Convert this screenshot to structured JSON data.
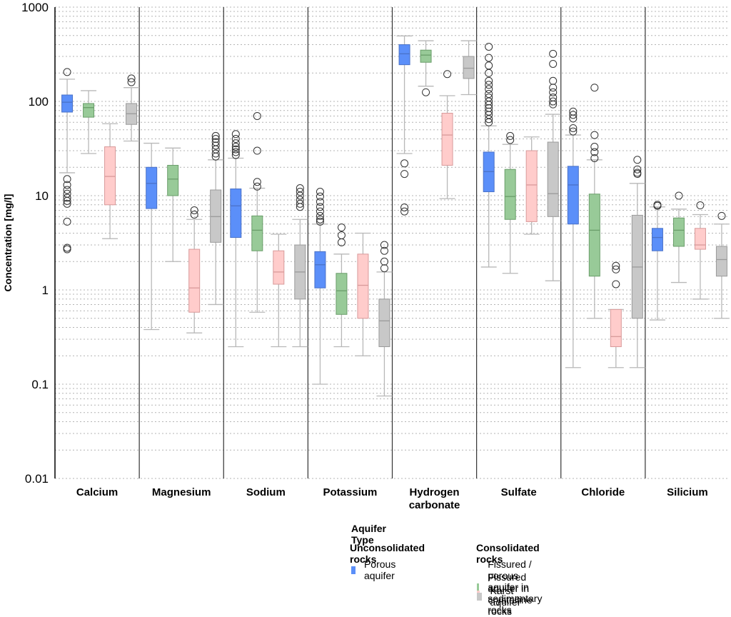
{
  "chart_data": {
    "type": "boxplot",
    "title": "",
    "xlabel": "",
    "ylabel": "Concentration [mg/l]",
    "yscale": "log",
    "ylim": [
      0.01,
      1000
    ],
    "yticks": [
      {
        "value": 1000,
        "label": "1000"
      },
      {
        "value": 100,
        "label": "100"
      },
      {
        "value": 10,
        "label": "10"
      },
      {
        "value": 1,
        "label": "1"
      },
      {
        "value": 0.1,
        "label": "0.1"
      },
      {
        "value": 0.01,
        "label": "0.01"
      }
    ],
    "grid": "dotted horizontal at each log minor step",
    "legend_placement": "bottom-right",
    "categories": [
      {
        "label": "Calcium",
        "lines": [
          "Calcium"
        ]
      },
      {
        "label": "Magnesium",
        "lines": [
          "Magnesium"
        ]
      },
      {
        "label": "Sodium",
        "lines": [
          "Sodium"
        ]
      },
      {
        "label": "Potassium",
        "lines": [
          "Potassium"
        ]
      },
      {
        "label": "Hydrogen carbonate",
        "lines": [
          "Hydrogen",
          "carbonate"
        ]
      },
      {
        "label": "Sulfate",
        "lines": [
          "Sulfate"
        ]
      },
      {
        "label": "Chloride",
        "lines": [
          "Chloride"
        ]
      },
      {
        "label": "Silicium",
        "lines": [
          "Silicium"
        ]
      }
    ],
    "series": [
      {
        "name": "Porous aquifer",
        "group": "Unconsolidated rocks",
        "color": "#5b8ff9",
        "stroke": "#4a72c8",
        "boxes": [
          {
            "whislo": 17.5,
            "q1": 77,
            "med": 98,
            "q3": 117,
            "whishi": 172,
            "fliers": [
              205,
              15,
              13,
              11.5,
              10.5,
              9.5,
              8.8,
              8.2,
              5.3,
              2.8,
              2.7
            ]
          },
          {
            "whislo": 0.38,
            "q1": 7.3,
            "med": 13.5,
            "q3": 20,
            "whishi": 36,
            "fliers": []
          },
          {
            "whislo": 0.25,
            "q1": 3.6,
            "med": 7.8,
            "q3": 11.8,
            "whishi": 25,
            "fliers": [
              45,
              40,
              36,
              33,
              31,
              29,
              27
            ]
          },
          {
            "whislo": 0.1,
            "q1": 1.05,
            "med": 1.85,
            "q3": 2.55,
            "whishi": 5,
            "fliers": [
              11,
              9.8,
              8.6,
              7.6,
              6.8,
              6.1,
              5.6,
              5.3
            ]
          },
          {
            "whislo": 28,
            "q1": 245,
            "med": 320,
            "q3": 400,
            "whishi": 495,
            "fliers": [
              22,
              17,
              7.5,
              6.8
            ]
          },
          {
            "whislo": 1.75,
            "q1": 11,
            "med": 18,
            "q3": 29,
            "whishi": 55,
            "fliers": [
              380,
              290,
              240,
              200,
              165,
              150,
              135,
              120,
              110,
              100,
              92,
              85,
              78,
              72,
              65,
              60
            ]
          },
          {
            "whislo": 0.15,
            "q1": 5,
            "med": 13,
            "q3": 20.5,
            "whishi": 44,
            "fliers": [
              78,
              72,
              66,
              52,
              48
            ]
          },
          {
            "whislo": 0.48,
            "q1": 2.6,
            "med": 3.6,
            "q3": 4.5,
            "whishi": 7.6,
            "fliers": [
              8,
              7.8
            ]
          }
        ]
      },
      {
        "name": "Fissured / porous aquifer in sedimentary rocks",
        "group": "Consolidated rocks",
        "color": "#98ca98",
        "stroke": "#6a9e6a",
        "boxes": [
          {
            "whislo": 28,
            "q1": 68,
            "med": 86,
            "q3": 95,
            "whishi": 130,
            "fliers": []
          },
          {
            "whislo": 2,
            "q1": 10,
            "med": 15,
            "q3": 21,
            "whishi": 32,
            "fliers": []
          },
          {
            "whislo": 0.58,
            "q1": 2.6,
            "med": 4.3,
            "q3": 6.1,
            "whishi": 12,
            "fliers": [
              70,
              30,
              14,
              12.5
            ]
          },
          {
            "whislo": 0.25,
            "q1": 0.55,
            "med": 0.98,
            "q3": 1.5,
            "whishi": 2.4,
            "fliers": [
              4.6,
              3.8,
              3.2
            ]
          },
          {
            "whislo": 145,
            "q1": 260,
            "med": 310,
            "q3": 350,
            "whishi": 440,
            "fliers": [
              125
            ]
          },
          {
            "whislo": 1.5,
            "q1": 5.6,
            "med": 9.8,
            "q3": 19,
            "whishi": 35,
            "fliers": [
              43,
              39
            ]
          },
          {
            "whislo": 0.5,
            "q1": 1.4,
            "med": 4.3,
            "q3": 10.4,
            "whishi": 24,
            "fliers": [
              140,
              44,
              33,
              29,
              25
            ]
          },
          {
            "whislo": 1.2,
            "q1": 2.9,
            "med": 4.3,
            "q3": 5.8,
            "whishi": 7.2,
            "fliers": [
              10
            ]
          }
        ]
      },
      {
        "name": "Fissured aquifer in crystalline rocks",
        "group": "Consolidated rocks",
        "color": "#ffcccb",
        "stroke": "#d89a9a",
        "boxes": [
          {
            "whislo": 3.5,
            "q1": 8,
            "med": 16,
            "q3": 33,
            "whishi": 58,
            "fliers": []
          },
          {
            "whislo": 0.35,
            "q1": 0.58,
            "med": 1.05,
            "q3": 2.7,
            "whishi": 5.6,
            "fliers": [
              7,
              6.3
            ]
          },
          {
            "whislo": 0.25,
            "q1": 1.15,
            "med": 1.55,
            "q3": 2.6,
            "whishi": 3.9,
            "fliers": []
          },
          {
            "whislo": 0.2,
            "q1": 0.5,
            "med": 1.12,
            "q3": 2.4,
            "whishi": 4,
            "fliers": []
          },
          {
            "whislo": 9.3,
            "q1": 21,
            "med": 44,
            "q3": 75,
            "whishi": 115,
            "fliers": [
              195
            ]
          },
          {
            "whislo": 3.9,
            "q1": 5.3,
            "med": 13,
            "q3": 30,
            "whishi": 42,
            "fliers": []
          },
          {
            "whislo": 0.15,
            "q1": 0.25,
            "med": 0.32,
            "q3": 0.62,
            "whishi": 0.62,
            "fliers": [
              1.8,
              1.65,
              1.15
            ]
          },
          {
            "whislo": 0.8,
            "q1": 2.7,
            "med": 3,
            "q3": 4.5,
            "whishi": 6.3,
            "fliers": [
              7.9
            ]
          }
        ]
      },
      {
        "name": "Karst aquifer",
        "group": "Consolidated rocks",
        "color": "#c8c8c8",
        "stroke": "#9a9a9a",
        "boxes": [
          {
            "whislo": 38,
            "q1": 57,
            "med": 74,
            "q3": 95,
            "whishi": 140,
            "fliers": [
              175,
              160
            ]
          },
          {
            "whislo": 0.7,
            "q1": 3.2,
            "med": 6,
            "q3": 11.5,
            "whishi": 24,
            "fliers": [
              43,
              40,
              37,
              34,
              31,
              28,
              26
            ]
          },
          {
            "whislo": 0.25,
            "q1": 0.8,
            "med": 1.55,
            "q3": 3,
            "whishi": 5.6,
            "fliers": [
              12,
              11,
              10,
              9,
              8.2,
              7.6
            ]
          },
          {
            "whislo": 0.075,
            "q1": 0.25,
            "med": 0.47,
            "q3": 0.8,
            "whishi": 1.55,
            "fliers": [
              3,
              2.6,
              2,
              1.7
            ]
          },
          {
            "whislo": 118,
            "q1": 175,
            "med": 225,
            "q3": 300,
            "whishi": 440,
            "fliers": []
          },
          {
            "whislo": 1.25,
            "q1": 6,
            "med": 10.5,
            "q3": 37,
            "whishi": 73,
            "fliers": [
              320,
              250,
              165,
              140,
              125,
              110,
              100,
              93
            ]
          },
          {
            "whislo": 0.15,
            "q1": 0.5,
            "med": 1.75,
            "q3": 6.2,
            "whishi": 13.5,
            "fliers": [
              24,
              19,
              17.5,
              17
            ]
          },
          {
            "whislo": 0.5,
            "q1": 1.4,
            "med": 2.1,
            "q3": 2.9,
            "whishi": 5,
            "fliers": [
              6.1
            ]
          }
        ]
      }
    ]
  },
  "legend": {
    "title": "Aquifer Type",
    "groups": [
      {
        "title": "Unconsolidated rocks",
        "items": [
          {
            "label": "Porous aquifer",
            "color": "#5b8ff9"
          }
        ]
      },
      {
        "title": "Consolidated rocks",
        "items": [
          {
            "label": "Fissured / porous aquifer in sedimentary rocks",
            "color": "#98ca98"
          },
          {
            "label": "Fissured aquifer in crystalline rocks",
            "color": "#ffcccb"
          },
          {
            "label": "Karst aquifer",
            "color": "#c8c8c8"
          }
        ]
      }
    ]
  }
}
